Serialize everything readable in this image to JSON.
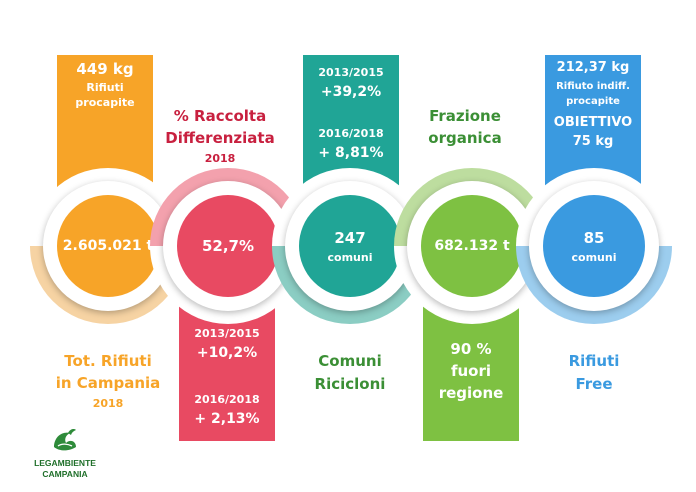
{
  "colors": {
    "orange": "#f7a428",
    "orange_light": "#f6d3a3",
    "pink": "#e84a62",
    "pink_light": "#f3a1ad",
    "teal": "#20a596",
    "teal_light": "#8bcdc3",
    "green": "#7ec142",
    "green_light": "#bddd9f",
    "blue": "#3a9ae0",
    "blue_light": "#9ccdee",
    "red_text": "#c8203f",
    "green_text": "#3b8f35"
  },
  "col1": {
    "top_value": "449 kg",
    "top_label_1": "Rifiuti",
    "top_label_2": "procapite",
    "circle_value": "2.605.021 t",
    "bottom_label_1": "Tot. Rifiuti",
    "bottom_label_2": "in Campania",
    "bottom_year": "2018"
  },
  "col2": {
    "top_label_1": "% Raccolta",
    "top_label_2": "Differenziata",
    "top_year": "2018",
    "circle_value": "52,7%",
    "period_1": "2013/2015",
    "value_1": "+10,2%",
    "period_2": "2016/2018",
    "value_2": "+ 2,13%"
  },
  "col3": {
    "period_1": "2013/2015",
    "value_1": "+39,2%",
    "period_2": "2016/2018",
    "value_2": "+ 8,81%",
    "circle_value": "247",
    "circle_unit": "comuni",
    "bottom_label_1": "Comuni",
    "bottom_label_2": "Ricicloni"
  },
  "col4": {
    "top_label_1": "Frazione",
    "top_label_2": "organica",
    "circle_value": "682.132 t",
    "bottom_label_1": "90 %",
    "bottom_label_2": "fuori",
    "bottom_label_3": "regione"
  },
  "col5": {
    "top_value": "212,37 kg",
    "top_label_1": "Rifiuto indiff.",
    "top_label_2": "procapite",
    "goal_label": "OBIETTIVO",
    "goal_value": "75 kg",
    "circle_value": "85",
    "circle_unit": "comuni",
    "bottom_label_1": "Rifiuti",
    "bottom_label_2": "Free"
  },
  "logo": {
    "name_1": "LEGAMBIENTE",
    "name_2": "CAMPANIA",
    "icon": "swan-logo-icon"
  }
}
